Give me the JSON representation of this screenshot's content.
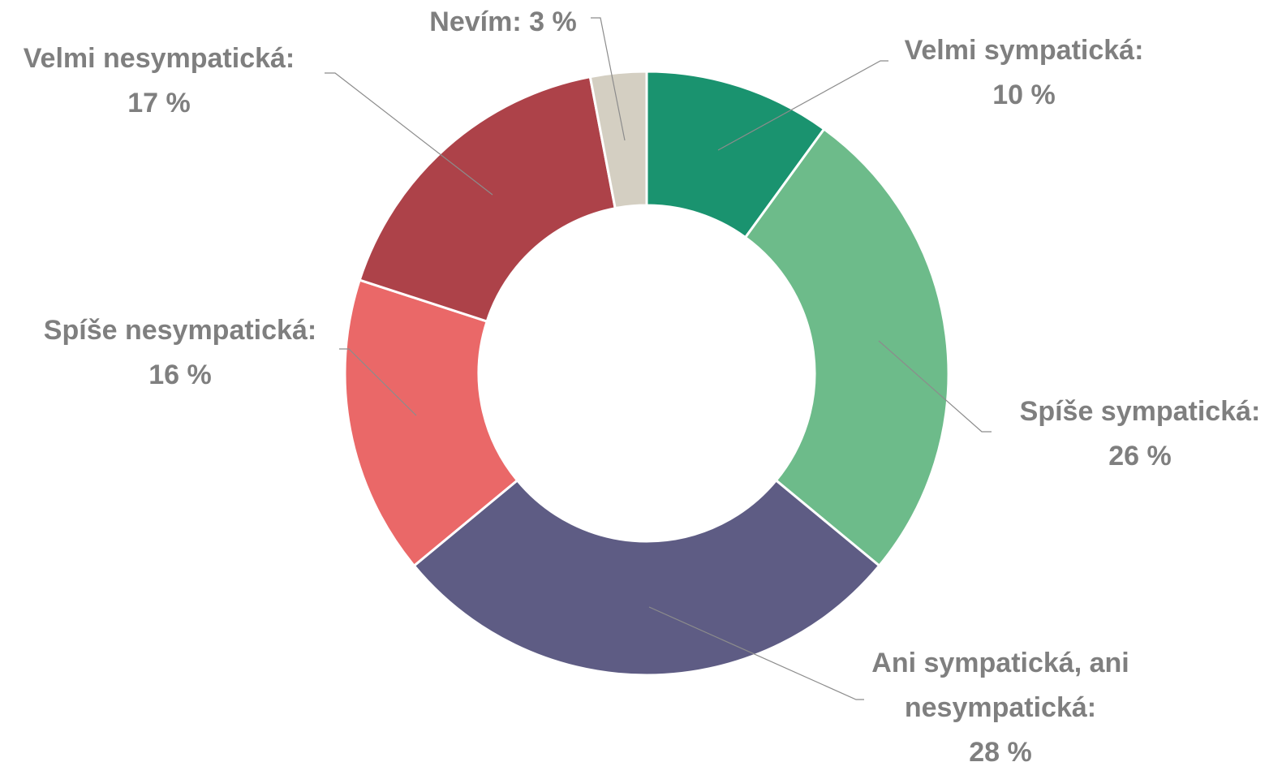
{
  "chart_data": {
    "type": "donut",
    "categories": [
      "Velmi sympatická:",
      "Spíše sympatická:",
      "Ani sympatická, ani nesympatická:",
      "Spíše nesympatická:",
      "Velmi nesympatická:",
      "Nevím:"
    ],
    "values": [
      10,
      26,
      28,
      16,
      17,
      3
    ],
    "value_labels": [
      "10 %",
      "26 %",
      "28 %",
      "16 %",
      "17 %",
      "3 %"
    ],
    "colors": [
      "#1a936f",
      "#6dbb8a",
      "#5e5c84",
      "#ea6868",
      "#ad4249",
      "#d4cfc2"
    ]
  }
}
